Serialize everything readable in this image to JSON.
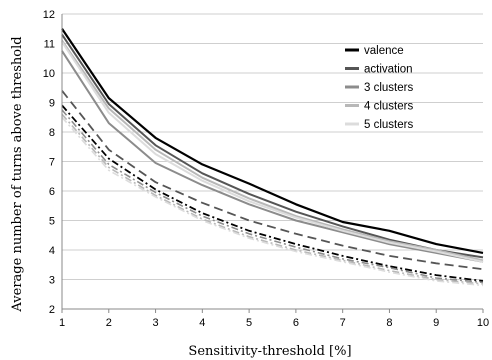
{
  "chart_data": {
    "type": "line",
    "title": "",
    "xlabel": "Sensitivity-threshold [%]",
    "ylabel": "Average number of turns above threshold",
    "x": [
      1,
      2,
      3,
      4,
      5,
      6,
      7,
      8,
      9,
      10
    ],
    "xlim": [
      1,
      10
    ],
    "ylim": [
      2,
      12
    ],
    "yticks": [
      2,
      3,
      4,
      5,
      6,
      7,
      8,
      9,
      10,
      11,
      12
    ],
    "grid": "horizontal",
    "legend_position": "top-right",
    "series": [
      {
        "name": "valence",
        "color": "#000000",
        "dash": "solid",
        "width": 2.2,
        "values": [
          11.5,
          9.15,
          7.8,
          6.9,
          6.25,
          5.55,
          4.95,
          4.65,
          4.2,
          3.9
        ]
      },
      {
        "name": "activation",
        "color": "#555555",
        "dash": "solid",
        "width": 2.0,
        "values": [
          11.3,
          8.95,
          7.55,
          6.6,
          5.9,
          5.3,
          4.8,
          4.35,
          4.0,
          3.75
        ]
      },
      {
        "name": "3 clusters",
        "color": "#8c8c8c",
        "dash": "solid",
        "width": 2.0,
        "values": [
          10.75,
          8.3,
          6.95,
          6.2,
          5.55,
          5.0,
          4.6,
          4.2,
          3.9,
          3.6
        ]
      },
      {
        "name": "4 clusters",
        "color": "#b8b8b8",
        "dash": "solid",
        "width": 2.0,
        "values": [
          11.1,
          8.8,
          7.4,
          6.45,
          5.75,
          5.15,
          4.7,
          4.3,
          4.0,
          3.65
        ]
      },
      {
        "name": "5 clusters",
        "color": "#dcdcdc",
        "dash": "solid",
        "width": 2.0,
        "values": [
          11.05,
          8.65,
          7.25,
          6.35,
          5.65,
          5.1,
          4.65,
          4.25,
          3.95,
          3.6
        ]
      },
      {
        "name": "",
        "color": "#555555",
        "dash": "long",
        "width": 1.8,
        "values": [
          9.4,
          7.4,
          6.3,
          5.6,
          5.0,
          4.55,
          4.15,
          3.8,
          3.55,
          3.35
        ]
      },
      {
        "name": "",
        "color": "#000000",
        "dash": "dashdot",
        "width": 1.8,
        "values": [
          8.9,
          7.1,
          6.05,
          5.25,
          4.65,
          4.2,
          3.8,
          3.45,
          3.15,
          2.95
        ]
      },
      {
        "name": "",
        "color": "#8c8c8c",
        "dash": "dashdot",
        "width": 1.6,
        "values": [
          8.75,
          6.9,
          5.95,
          5.15,
          4.55,
          4.1,
          3.7,
          3.4,
          3.05,
          2.9
        ]
      },
      {
        "name": "",
        "color": "#b8b8b8",
        "dash": "dashdot",
        "width": 1.6,
        "values": [
          8.6,
          6.8,
          5.85,
          5.05,
          4.45,
          4.0,
          3.65,
          3.3,
          3.0,
          2.85
        ]
      },
      {
        "name": "",
        "color": "#dcdcdc",
        "dash": "dashdot",
        "width": 1.6,
        "values": [
          8.5,
          6.7,
          5.8,
          5.0,
          4.4,
          3.95,
          3.6,
          3.25,
          2.95,
          2.8
        ]
      }
    ]
  }
}
